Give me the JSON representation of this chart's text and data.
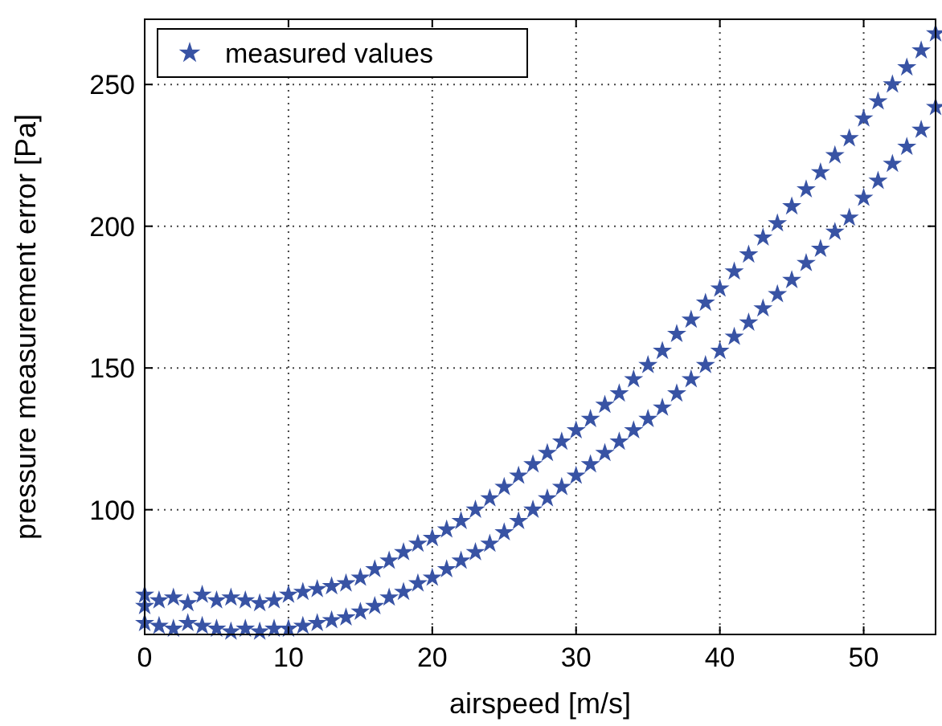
{
  "chart_data": {
    "type": "scatter",
    "xlabel": "airspeed [m/s]",
    "ylabel": "pressure measurement error [Pa]",
    "xlim": [
      0,
      55
    ],
    "ylim": [
      56,
      273
    ],
    "xticks": [
      0,
      10,
      20,
      30,
      40,
      50
    ],
    "yticks": [
      100,
      150,
      200,
      250
    ],
    "grid": true,
    "legend": "top left",
    "marker": "star",
    "series": [
      {
        "name": "measured values",
        "color": "#3853a4",
        "x": [
          0,
          0,
          0,
          1,
          1,
          2,
          2,
          3,
          3,
          4,
          4,
          5,
          5,
          6,
          6,
          7,
          7,
          8,
          8,
          9,
          9,
          10,
          10,
          11,
          11,
          12,
          12,
          13,
          13,
          14,
          14,
          15,
          15,
          16,
          16,
          17,
          17,
          18,
          18,
          19,
          19,
          20,
          20,
          21,
          21,
          22,
          22,
          23,
          23,
          24,
          24,
          25,
          25,
          26,
          26,
          27,
          27,
          28,
          28,
          29,
          29,
          30,
          30,
          31,
          31,
          32,
          32,
          33,
          33,
          34,
          34,
          35,
          35,
          36,
          36,
          37,
          37,
          38,
          38,
          39,
          39,
          40,
          40,
          41,
          41,
          42,
          42,
          43,
          43,
          44,
          44,
          45,
          45,
          46,
          46,
          47,
          47,
          48,
          48,
          49,
          49,
          50,
          50,
          51,
          51,
          52,
          52,
          53,
          53,
          54,
          54,
          55,
          55
        ],
        "values": [
          60,
          66,
          70,
          59,
          68,
          58,
          69,
          60,
          67,
          59,
          70,
          58,
          68,
          57,
          69,
          58,
          68,
          57,
          67,
          58,
          68,
          58,
          70,
          59,
          71,
          60,
          72,
          61,
          73,
          62,
          74,
          64,
          76,
          66,
          79,
          69,
          82,
          71,
          85,
          74,
          88,
          76,
          90,
          79,
          93,
          82,
          96,
          85,
          100,
          88,
          104,
          92,
          108,
          96,
          112,
          100,
          116,
          104,
          120,
          108,
          124,
          112,
          128,
          116,
          132,
          120,
          137,
          124,
          141,
          128,
          146,
          132,
          151,
          136,
          156,
          141,
          162,
          146,
          167,
          151,
          173,
          156,
          178,
          161,
          184,
          166,
          190,
          171,
          196,
          176,
          201,
          181,
          207,
          187,
          213,
          192,
          219,
          198,
          225,
          203,
          231,
          210,
          238,
          216,
          244,
          222,
          250,
          228,
          256,
          234,
          262,
          242,
          268
        ]
      }
    ]
  }
}
